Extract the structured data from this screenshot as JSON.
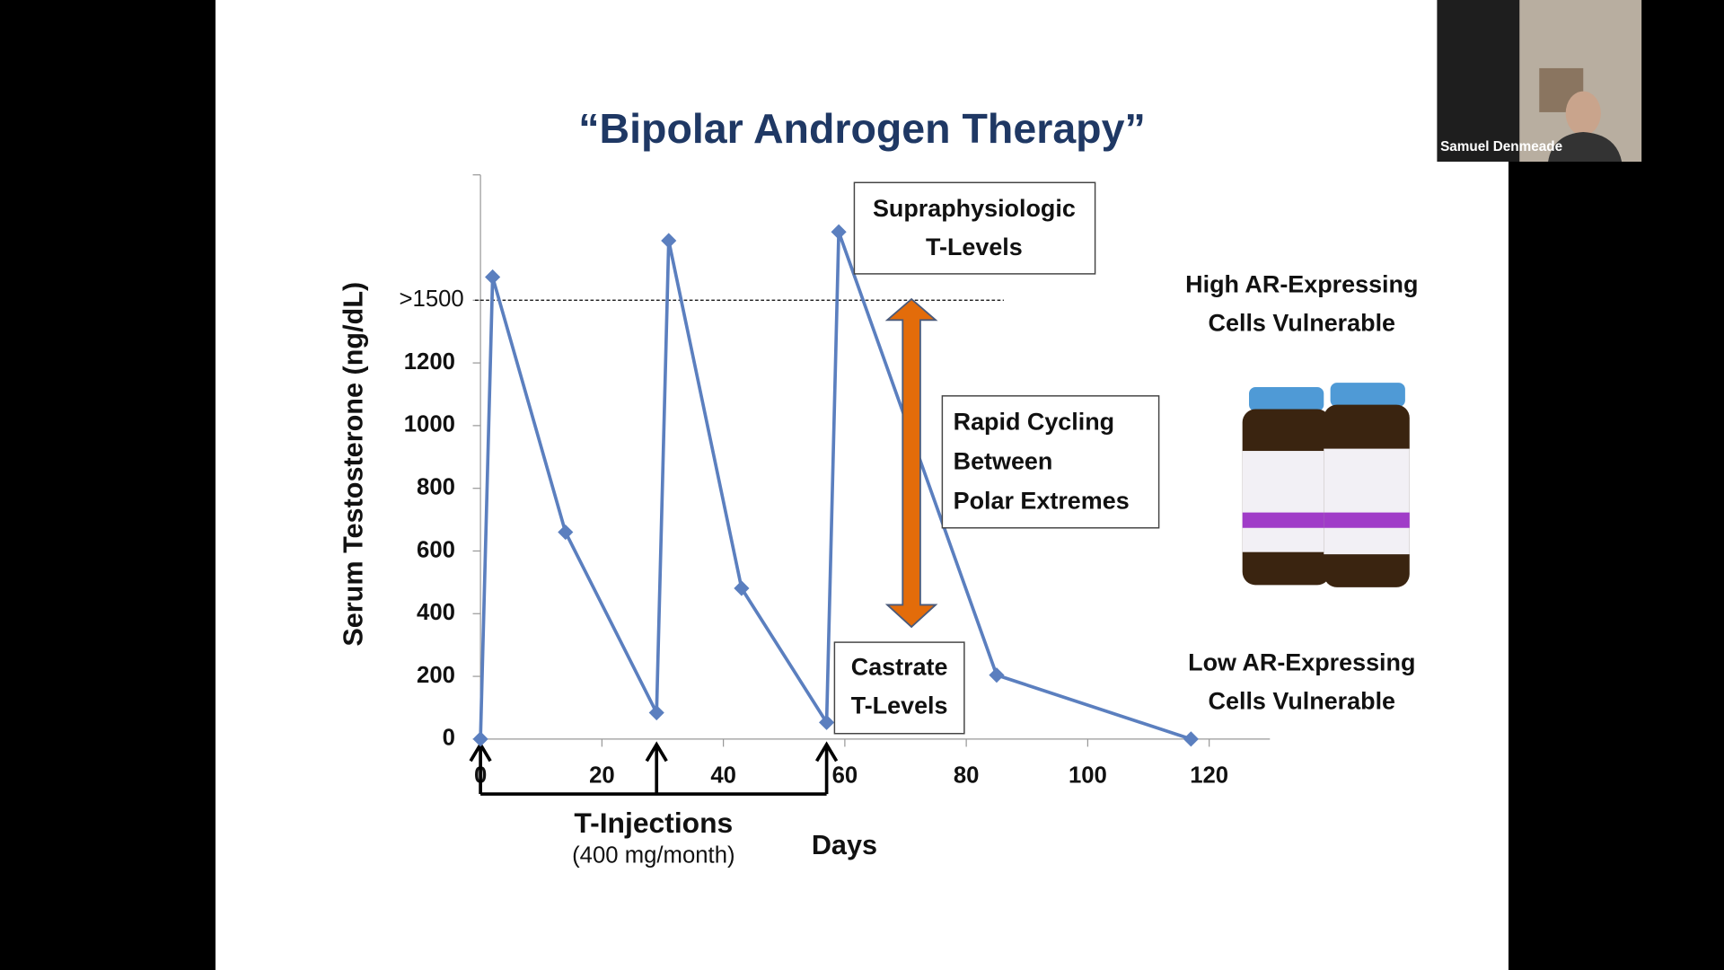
{
  "participant_name": "Samuel Denmeade",
  "chart_data": {
    "type": "line",
    "title": "“Bipolar Androgen Therapy”",
    "y_label": "Serum Testosterone (ng/dL)",
    "x_label": "Days",
    "color": "#5b7fbf",
    "x": [
      0,
      2,
      14,
      29,
      31,
      43,
      57,
      59,
      85,
      117
    ],
    "values": [
      0,
      1474,
      660,
      84,
      1590,
      481,
      53,
      1618,
      204,
      0
    ],
    "xlim": [
      0,
      130
    ],
    "ylim": [
      0,
      1800
    ],
    "xticks": [
      0,
      20,
      40,
      60,
      80,
      100,
      120
    ],
    "yticks": [
      0,
      200,
      400,
      600,
      800,
      1000,
      1200,
      {
        "value": 1400,
        "label": ">1500"
      }
    ],
    "threshold": 1400,
    "injections": {
      "x": [
        0,
        29,
        57
      ],
      "label": "T-Injections",
      "sublabel": "(400 mg/month)"
    },
    "annotations": {
      "supraphysiologic": [
        "Supraphysiologic",
        "T-Levels"
      ],
      "castrate": [
        "Castrate",
        "T-Levels"
      ],
      "cycling": [
        "Rapid Cycling",
        "Between",
        "Polar Extremes"
      ],
      "high_ar": [
        "High  AR-Expressing",
        "Cells Vulnerable"
      ],
      "low_ar": [
        "Low AR-Expressing",
        "Cells Vulnerable"
      ]
    }
  }
}
